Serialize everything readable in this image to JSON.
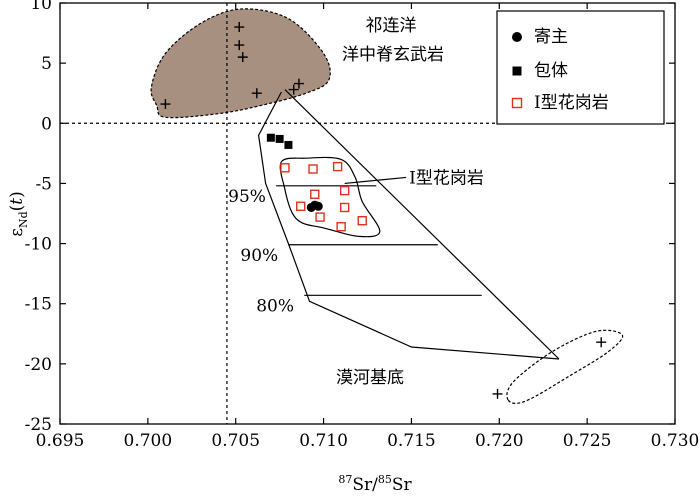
{
  "chart_data": {
    "type": "scatter",
    "title": "",
    "xlabel": "87Sr/85Sr",
    "xlabel_parts": {
      "sup": "87",
      "a": "Sr/",
      "sup2": "85",
      "b": "Sr"
    },
    "ylabel": "εNd(t)",
    "ylabel_parts": {
      "main": "ε",
      "sub": "Nd",
      "paren_open": "(",
      "italic": "t",
      "paren_close": ")"
    },
    "xlim": [
      0.695,
      0.73
    ],
    "ylim": [
      -25,
      10
    ],
    "xticks": [
      "0.695",
      "0.700",
      "0.705",
      "0.710",
      "0.715",
      "0.720",
      "0.725",
      "0.730"
    ],
    "yticks": [
      "10",
      "5",
      "0",
      "-5",
      "-10",
      "-15",
      "-20",
      "-25"
    ],
    "reference_lines": {
      "y": 0,
      "x": 0.7045
    },
    "legend": {
      "placement": "top-right",
      "entries": [
        {
          "label": "寄主",
          "marker": "circle"
        },
        {
          "label": "包体",
          "marker": "square-filled"
        },
        {
          "label": "I型花岗岩",
          "marker": "square-open-red"
        }
      ]
    },
    "colors": {
      "field_fill": "#a89080",
      "open_square": "#e03020",
      "axis": "#000000"
    },
    "series": [
      {
        "name": "寄主",
        "marker": "circle",
        "points": [
          [
            0.7093,
            -7.0
          ],
          [
            0.7095,
            -6.8
          ],
          [
            0.7097,
            -6.9
          ]
        ]
      },
      {
        "name": "包体",
        "marker": "square-filled",
        "points": [
          [
            0.707,
            -1.2
          ],
          [
            0.7075,
            -1.3
          ],
          [
            0.708,
            -1.8
          ]
        ]
      },
      {
        "name": "I型花岗岩",
        "marker": "square-open-red",
        "points": [
          [
            0.7078,
            -3.7
          ],
          [
            0.7094,
            -3.8
          ],
          [
            0.7108,
            -3.6
          ],
          [
            0.7112,
            -5.6
          ],
          [
            0.7095,
            -5.9
          ],
          [
            0.7087,
            -6.9
          ],
          [
            0.7098,
            -7.8
          ],
          [
            0.7112,
            -7.0
          ],
          [
            0.7122,
            -8.1
          ],
          [
            0.711,
            -8.6
          ]
        ]
      },
      {
        "name": "crosses",
        "marker": "plus",
        "points": [
          [
            0.7052,
            8.0
          ],
          [
            0.7052,
            6.5
          ],
          [
            0.7054,
            5.5
          ],
          [
            0.701,
            1.6
          ],
          [
            0.7062,
            2.5
          ],
          [
            0.7083,
            2.8
          ],
          [
            0.7086,
            3.3
          ],
          [
            0.7258,
            -18.2
          ],
          [
            0.7199,
            -22.5
          ]
        ]
      }
    ],
    "regions": {
      "mantle_field": {
        "label_line1": "祁连洋",
        "label_line2": "洋中脊玄武岩",
        "outline": [
          [
            0.7005,
            1.5
          ],
          [
            0.7002,
            3.0
          ],
          [
            0.701,
            5.8
          ],
          [
            0.703,
            8.3
          ],
          [
            0.7053,
            9.5
          ],
          [
            0.708,
            8.7
          ],
          [
            0.71,
            5.8
          ],
          [
            0.7103,
            3.6
          ],
          [
            0.709,
            2.5
          ],
          [
            0.7065,
            1.5
          ],
          [
            0.704,
            0.8
          ],
          [
            0.701,
            0.5
          ]
        ]
      },
      "granite_field": {
        "label": "I型花岗岩",
        "outline": [
          [
            0.7076,
            -3.2
          ],
          [
            0.709,
            -2.9
          ],
          [
            0.711,
            -3.0
          ],
          [
            0.7118,
            -4.5
          ],
          [
            0.7122,
            -6.5
          ],
          [
            0.7132,
            -9.0
          ],
          [
            0.712,
            -9.4
          ],
          [
            0.71,
            -8.7
          ],
          [
            0.7088,
            -8.3
          ],
          [
            0.7082,
            -7.4
          ],
          [
            0.7078,
            -5.5
          ]
        ]
      },
      "basement_field": {
        "label": "漠河基底",
        "outline": [
          [
            0.7205,
            -23.0
          ],
          [
            0.7208,
            -21.5
          ],
          [
            0.723,
            -19.0
          ],
          [
            0.7255,
            -17.3
          ],
          [
            0.727,
            -17.6
          ],
          [
            0.7262,
            -19.0
          ],
          [
            0.724,
            -21.0
          ],
          [
            0.7215,
            -23.1
          ]
        ]
      },
      "mixing_envelope": {
        "upper": [
          [
            0.7078,
            2.8
          ],
          [
            0.7234,
            -19.6
          ]
        ],
        "lower": [
          [
            0.7076,
            2.6
          ],
          [
            0.7063,
            -1.0
          ],
          [
            0.7067,
            -5.0
          ],
          [
            0.708,
            -10.0
          ],
          [
            0.7092,
            -14.8
          ],
          [
            0.715,
            -18.6
          ],
          [
            0.7234,
            -19.6
          ]
        ]
      },
      "percent_lines": [
        {
          "label": "95%",
          "y": -5.2,
          "x": [
            0.7073,
            0.713
          ]
        },
        {
          "label": "90%",
          "y": -10.1,
          "x": [
            0.708,
            0.7165
          ]
        },
        {
          "label": "80%",
          "y": -14.3,
          "x": [
            0.7089,
            0.719
          ]
        }
      ],
      "leader_line": {
        "from": [
          0.7112,
          -5.0
        ],
        "to": [
          0.7147,
          -4.5
        ]
      }
    }
  }
}
